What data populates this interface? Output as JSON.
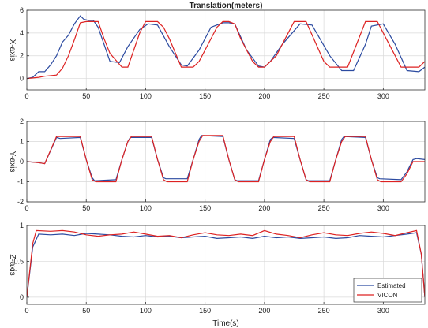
{
  "chart_data": [
    {
      "type": "line",
      "title": "Translation(meters)",
      "ylabel": "X-axis",
      "xlabel": "",
      "xlim": [
        0,
        335
      ],
      "ylim": [
        -1,
        6
      ],
      "xticks": [
        0,
        50,
        100,
        150,
        200,
        250,
        300
      ],
      "yticks": [
        0,
        2,
        4,
        6
      ],
      "grid": true,
      "series": [
        {
          "name": "Estimated",
          "color": "#2b4aa0",
          "x": [
            0,
            5,
            10,
            15,
            20,
            25,
            30,
            35,
            40,
            45,
            48,
            52,
            56,
            60,
            70,
            78,
            85,
            95,
            102,
            110,
            120,
            130,
            135,
            145,
            155,
            165,
            170,
            175,
            185,
            195,
            200,
            205,
            215,
            230,
            240,
            255,
            265,
            275,
            285,
            290,
            300,
            310,
            320,
            330,
            335
          ],
          "y": [
            0,
            0.1,
            0.6,
            0.6,
            1.2,
            2.0,
            3.2,
            3.8,
            4.8,
            5.5,
            5.2,
            5.1,
            5.1,
            4.5,
            1.5,
            1.4,
            2.8,
            4.3,
            4.8,
            4.7,
            2.8,
            1.2,
            1.1,
            2.5,
            4.5,
            4.9,
            4.9,
            4.8,
            2.5,
            1.1,
            1.0,
            1.5,
            3.0,
            4.8,
            4.7,
            2.0,
            0.7,
            0.7,
            3.0,
            4.6,
            4.8,
            3.0,
            0.7,
            0.6,
            1.0
          ]
        },
        {
          "name": "VICON",
          "color": "#dd2222",
          "x": [
            0,
            10,
            15,
            25,
            30,
            35,
            40,
            45,
            50,
            55,
            60,
            65,
            70,
            80,
            85,
            90,
            95,
            100,
            110,
            115,
            120,
            130,
            140,
            145,
            150,
            160,
            165,
            170,
            175,
            180,
            190,
            195,
            200,
            210,
            225,
            235,
            250,
            255,
            260,
            270,
            285,
            295,
            305,
            315,
            320,
            330,
            335
          ],
          "y": [
            0,
            0.1,
            0.2,
            0.3,
            0.9,
            2.0,
            3.4,
            4.9,
            5.0,
            5.0,
            5.0,
            3.5,
            2.2,
            1.0,
            1.0,
            2.5,
            4.0,
            5.0,
            5.0,
            4.5,
            3.5,
            1.0,
            1.0,
            1.5,
            2.5,
            4.5,
            5.0,
            5.0,
            4.8,
            3.5,
            1.5,
            1.0,
            1.0,
            2.0,
            5.0,
            5.0,
            1.5,
            1.0,
            1.0,
            1.0,
            5.0,
            5.0,
            3.0,
            1.0,
            1.0,
            1.0,
            1.5
          ]
        }
      ]
    },
    {
      "type": "line",
      "title": "",
      "ylabel": "Y-axis",
      "xlabel": "",
      "xlim": [
        0,
        335
      ],
      "ylim": [
        -2,
        2
      ],
      "xticks": [
        0,
        50,
        100,
        150,
        200,
        250,
        300
      ],
      "yticks": [
        -2,
        -1,
        0,
        1,
        2
      ],
      "grid": true,
      "series": [
        {
          "name": "Estimated",
          "color": "#2b4aa0",
          "x": [
            0,
            10,
            15,
            25,
            28,
            45,
            50,
            55,
            57,
            75,
            80,
            85,
            87,
            105,
            110,
            115,
            117,
            135,
            140,
            145,
            147,
            165,
            170,
            175,
            177,
            195,
            200,
            205,
            207,
            225,
            230,
            235,
            237,
            255,
            260,
            265,
            267,
            285,
            290,
            295,
            297,
            315,
            320,
            325,
            328,
            335
          ],
          "y": [
            0,
            -0.05,
            -0.1,
            1.2,
            1.15,
            1.2,
            0.1,
            -0.8,
            -0.95,
            -0.9,
            0.1,
            1.0,
            1.2,
            1.2,
            0.1,
            -0.8,
            -0.85,
            -0.85,
            0.1,
            1.1,
            1.3,
            1.25,
            0.1,
            -0.9,
            -0.95,
            -0.95,
            0.1,
            1.1,
            1.2,
            1.15,
            0.1,
            -0.9,
            -0.95,
            -0.95,
            0.1,
            1.1,
            1.25,
            1.2,
            0.1,
            -0.8,
            -0.85,
            -0.9,
            -0.5,
            0.1,
            0.15,
            0.1
          ]
        },
        {
          "name": "VICON",
          "color": "#dd2222",
          "x": [
            0,
            10,
            15,
            25,
            45,
            50,
            55,
            58,
            75,
            80,
            85,
            88,
            105,
            110,
            115,
            118,
            135,
            140,
            145,
            148,
            165,
            170,
            175,
            178,
            195,
            200,
            205,
            208,
            225,
            230,
            235,
            238,
            255,
            260,
            265,
            268,
            285,
            290,
            295,
            298,
            315,
            320,
            325,
            335
          ],
          "y": [
            0,
            -0.05,
            -0.1,
            1.25,
            1.25,
            0.1,
            -0.9,
            -1.0,
            -1.0,
            0.1,
            1.0,
            1.25,
            1.25,
            0.1,
            -0.9,
            -1.0,
            -1.0,
            0.1,
            1.0,
            1.3,
            1.3,
            0.1,
            -0.9,
            -1.0,
            -1.0,
            0.1,
            1.0,
            1.25,
            1.25,
            0.1,
            -0.9,
            -1.0,
            -1.0,
            0.1,
            1.0,
            1.25,
            1.25,
            0.1,
            -0.9,
            -1.0,
            -1.0,
            -0.6,
            0.0,
            0.0
          ]
        }
      ]
    },
    {
      "type": "line",
      "title": "",
      "ylabel": "Z-axis",
      "xlabel": "Time(s)",
      "xlim": [
        0,
        335
      ],
      "ylim": [
        -0.1,
        1.0
      ],
      "xticks": [
        0,
        50,
        100,
        150,
        200,
        250,
        300
      ],
      "yticks": [
        0,
        0.5,
        1
      ],
      "grid": true,
      "legend": "bottom-right",
      "series": [
        {
          "name": "Estimated",
          "color": "#2b4aa0",
          "x": [
            0,
            5,
            10,
            20,
            30,
            40,
            50,
            60,
            70,
            80,
            90,
            100,
            110,
            120,
            130,
            140,
            150,
            160,
            170,
            180,
            190,
            200,
            210,
            220,
            230,
            240,
            250,
            260,
            270,
            280,
            290,
            300,
            310,
            320,
            328,
            332,
            335
          ],
          "y": [
            0,
            0.7,
            0.88,
            0.87,
            0.88,
            0.86,
            0.89,
            0.88,
            0.87,
            0.85,
            0.84,
            0.86,
            0.84,
            0.85,
            0.83,
            0.84,
            0.85,
            0.82,
            0.83,
            0.84,
            0.82,
            0.85,
            0.83,
            0.84,
            0.82,
            0.83,
            0.84,
            0.82,
            0.83,
            0.86,
            0.85,
            0.84,
            0.86,
            0.88,
            0.9,
            0.6,
            0.0
          ]
        },
        {
          "name": "VICON",
          "color": "#dd2222",
          "x": [
            0,
            5,
            8,
            20,
            30,
            40,
            50,
            60,
            70,
            80,
            90,
            100,
            110,
            120,
            130,
            140,
            150,
            160,
            170,
            180,
            190,
            200,
            210,
            220,
            230,
            240,
            250,
            260,
            270,
            280,
            290,
            300,
            310,
            320,
            328,
            332,
            335
          ],
          "y": [
            0,
            0.75,
            0.93,
            0.92,
            0.93,
            0.91,
            0.87,
            0.85,
            0.87,
            0.88,
            0.91,
            0.88,
            0.85,
            0.86,
            0.83,
            0.87,
            0.9,
            0.87,
            0.86,
            0.88,
            0.86,
            0.93,
            0.88,
            0.86,
            0.83,
            0.87,
            0.9,
            0.87,
            0.86,
            0.89,
            0.91,
            0.89,
            0.86,
            0.9,
            0.93,
            0.6,
            0.0
          ]
        }
      ]
    }
  ]
}
